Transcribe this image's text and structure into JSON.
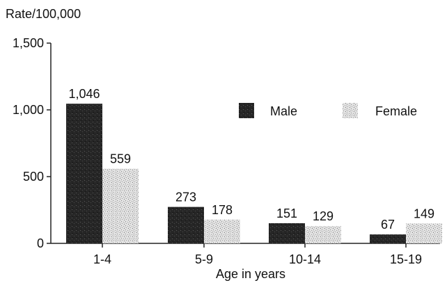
{
  "chart_data": {
    "type": "bar",
    "ylabel": "Rate/100,000",
    "xlabel": "Age in years",
    "categories": [
      "1-4",
      "5-9",
      "10-14",
      "15-19"
    ],
    "series": [
      {
        "name": "Male",
        "values": [
          1046,
          273,
          151,
          67
        ],
        "labels": [
          "1,046",
          "273",
          "151",
          "67"
        ],
        "color": "#2b2b2b"
      },
      {
        "name": "Female",
        "values": [
          559,
          178,
          129,
          149
        ],
        "labels": [
          "559",
          "178",
          "129",
          "149"
        ],
        "color": "#cfcfcf"
      }
    ],
    "ylim": [
      0,
      1500
    ],
    "yticks": [
      {
        "value": 0,
        "label": "0"
      },
      {
        "value": 500,
        "label": "500"
      },
      {
        "value": 1000,
        "label": "1,000"
      },
      {
        "value": 1500,
        "label": "1,500"
      }
    ],
    "grid": false,
    "legend_position": "top-right"
  }
}
